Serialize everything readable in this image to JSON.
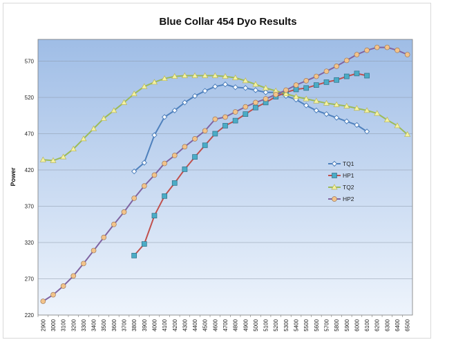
{
  "chart_data": {
    "type": "line",
    "title": "Blue Collar 454 Dyo Results",
    "xlabel": "",
    "ylabel": "Power",
    "ylim": [
      220,
      600
    ],
    "yticks": [
      220,
      270,
      320,
      370,
      420,
      470,
      520,
      570
    ],
    "x": [
      2900,
      3000,
      3100,
      3200,
      3300,
      3400,
      3500,
      3600,
      3700,
      3800,
      3900,
      4000,
      4100,
      4200,
      4300,
      4400,
      4500,
      4600,
      4700,
      4800,
      4900,
      5000,
      5100,
      5200,
      5300,
      5400,
      5500,
      5600,
      5700,
      5800,
      5900,
      6000,
      6100,
      6200,
      6300,
      6400,
      6500
    ],
    "grid": true,
    "legend_position": "right",
    "series": [
      {
        "name": "TQ1",
        "color": "#4f81bd",
        "marker": "diamond",
        "values": [
          null,
          null,
          null,
          null,
          null,
          null,
          null,
          null,
          null,
          418,
          430,
          468,
          493,
          502,
          513,
          522,
          529,
          535,
          538,
          534,
          533,
          530,
          527,
          527,
          522,
          517,
          509,
          502,
          497,
          492,
          487,
          482,
          473,
          null,
          null,
          null,
          null
        ]
      },
      {
        "name": "HP1",
        "color": "#c0504d",
        "marker": "square",
        "values": [
          null,
          null,
          null,
          null,
          null,
          null,
          null,
          null,
          null,
          302,
          318,
          357,
          384,
          402,
          421,
          438,
          454,
          470,
          481,
          488,
          497,
          506,
          513,
          521,
          527,
          531,
          533,
          537,
          541,
          544,
          549,
          553,
          550,
          null,
          null,
          null,
          null
        ]
      },
      {
        "name": "TQ2",
        "color": "#9bbb59",
        "marker": "triangle",
        "values": [
          434,
          433,
          438,
          449,
          463,
          477,
          491,
          502,
          513,
          525,
          535,
          541,
          546,
          549,
          550,
          550,
          550,
          550,
          549,
          547,
          543,
          538,
          533,
          529,
          525,
          521,
          518,
          515,
          512,
          510,
          508,
          505,
          502,
          498,
          489,
          481,
          469
        ]
      },
      {
        "name": "HP2",
        "color": "#8064a2",
        "marker": "circle",
        "values": [
          239,
          248,
          260,
          274,
          291,
          309,
          327,
          345,
          362,
          381,
          398,
          413,
          429,
          440,
          452,
          463,
          474,
          490,
          493,
          500,
          507,
          513,
          518,
          524,
          530,
          537,
          543,
          549,
          556,
          563,
          571,
          579,
          585,
          589,
          589,
          585,
          579
        ]
      }
    ]
  }
}
